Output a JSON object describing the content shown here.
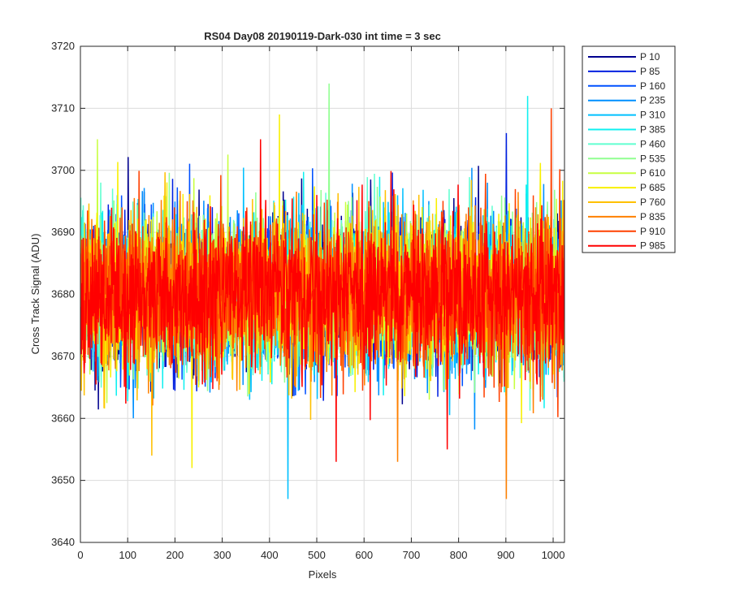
{
  "chart_data": {
    "type": "line",
    "title": "RS04 Day08 20190119-Dark-030 int time = 3 sec",
    "xlabel": "Pixels",
    "ylabel": "Cross Track Signal (ADU)",
    "xlim": [
      0,
      1024
    ],
    "ylim": [
      3640,
      3720
    ],
    "x_ticks": [
      0,
      100,
      200,
      300,
      400,
      500,
      600,
      700,
      800,
      900,
      1000
    ],
    "y_ticks": [
      3640,
      3650,
      3660,
      3670,
      3680,
      3690,
      3700,
      3710,
      3720
    ],
    "grid": true,
    "legend_position": "outside-top-right",
    "points_per_series": 1024,
    "noise_mean": 3680,
    "noise_spread": 6,
    "series": [
      {
        "name": "P 10",
        "color": "#00008f"
      },
      {
        "name": "P 85",
        "color": "#0020e0"
      },
      {
        "name": "P 160",
        "color": "#0050ff"
      },
      {
        "name": "P 235",
        "color": "#0090ff"
      },
      {
        "name": "P 310",
        "color": "#00c0ff"
      },
      {
        "name": "P 385",
        "color": "#10f0f0"
      },
      {
        "name": "P 460",
        "color": "#60ffd0"
      },
      {
        "name": "P 535",
        "color": "#90ff90"
      },
      {
        "name": "P 610",
        "color": "#c8ff40"
      },
      {
        "name": "P 685",
        "color": "#f8f000"
      },
      {
        "name": "P 760",
        "color": "#ffc000"
      },
      {
        "name": "P 835",
        "color": "#ff8000"
      },
      {
        "name": "P 910",
        "color": "#ff4000"
      },
      {
        "name": "P 985",
        "color": "#ff0000"
      }
    ],
    "notable_spikes": [
      {
        "series": "P 535",
        "x": 525,
        "y": 3714
      },
      {
        "series": "P 385",
        "x": 945,
        "y": 3712
      },
      {
        "series": "P 910",
        "x": 995,
        "y": 3710
      },
      {
        "series": "P 685",
        "x": 420,
        "y": 3709
      },
      {
        "series": "P 985",
        "x": 380,
        "y": 3705
      },
      {
        "series": "P 610",
        "x": 35,
        "y": 3705
      },
      {
        "series": "P 85",
        "x": 900,
        "y": 3706
      },
      {
        "series": "P 310",
        "x": 438,
        "y": 3647
      },
      {
        "series": "P 835",
        "x": 900,
        "y": 3647
      },
      {
        "series": "P 985",
        "x": 540,
        "y": 3653
      },
      {
        "series": "P 685",
        "x": 235,
        "y": 3652
      },
      {
        "series": "P 760",
        "x": 150,
        "y": 3654
      },
      {
        "series": "P 835",
        "x": 670,
        "y": 3653
      },
      {
        "series": "P 985",
        "x": 775,
        "y": 3655
      }
    ]
  }
}
